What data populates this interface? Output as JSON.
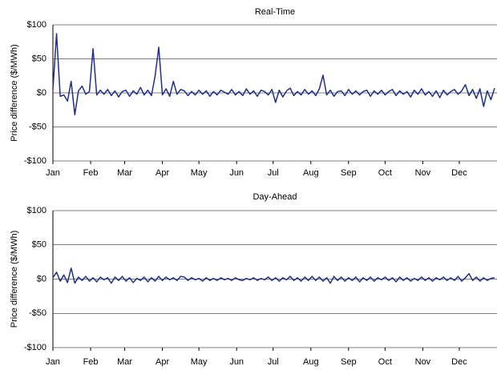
{
  "chart_data": [
    {
      "type": "line",
      "title": "Real-Time",
      "y_label": "Price difference ($/MWh)",
      "color": "#1f2f8a",
      "grid": true,
      "xlim": [
        1,
        366
      ],
      "ylim": [
        -100,
        100
      ],
      "xticks": [
        {
          "value": 1,
          "label": "Jan"
        },
        {
          "value": 32,
          "label": "Feb"
        },
        {
          "value": 60,
          "label": "Mar"
        },
        {
          "value": 91,
          "label": "Apr"
        },
        {
          "value": 121,
          "label": "May"
        },
        {
          "value": 152,
          "label": "Jun"
        },
        {
          "value": 182,
          "label": "Jul"
        },
        {
          "value": 213,
          "label": "Aug"
        },
        {
          "value": 244,
          "label": "Sep"
        },
        {
          "value": 274,
          "label": "Oct"
        },
        {
          "value": 305,
          "label": "Nov"
        },
        {
          "value": 335,
          "label": "Dec"
        }
      ],
      "yticks": [
        {
          "value": -100,
          "label": "-$100"
        },
        {
          "value": -50,
          "label": "-$50"
        },
        {
          "value": 0,
          "label": "$0"
        },
        {
          "value": 50,
          "label": "$50"
        },
        {
          "value": 100,
          "label": "$100"
        }
      ],
      "x": [
        1,
        4,
        7,
        10,
        13,
        16,
        19,
        22,
        25,
        28,
        31,
        34,
        37,
        40,
        43,
        46,
        49,
        52,
        55,
        58,
        61,
        64,
        67,
        70,
        73,
        76,
        79,
        82,
        85,
        88,
        91,
        94,
        97,
        100,
        103,
        106,
        109,
        112,
        115,
        118,
        121,
        124,
        127,
        130,
        133,
        136,
        139,
        142,
        145,
        148,
        151,
        154,
        157,
        160,
        163,
        166,
        169,
        172,
        175,
        178,
        181,
        184,
        187,
        190,
        193,
        196,
        199,
        202,
        205,
        208,
        211,
        214,
        217,
        220,
        223,
        226,
        229,
        232,
        235,
        238,
        241,
        244,
        247,
        250,
        253,
        256,
        259,
        262,
        265,
        268,
        271,
        274,
        277,
        280,
        283,
        286,
        289,
        292,
        295,
        298,
        301,
        304,
        307,
        310,
        313,
        316,
        319,
        322,
        325,
        328,
        331,
        334,
        337,
        340,
        343,
        346,
        349,
        352,
        355,
        358,
        361,
        364
      ],
      "values": [
        5,
        87,
        -5,
        -3,
        -12,
        17,
        -32,
        3,
        10,
        -2,
        2,
        65,
        -3,
        4,
        -2,
        5,
        -4,
        3,
        -6,
        2,
        4,
        -5,
        3,
        -2,
        8,
        -3,
        4,
        -4,
        25,
        67,
        -3,
        6,
        -5,
        17,
        -2,
        5,
        3,
        -4,
        2,
        -3,
        4,
        -2,
        3,
        -5,
        2,
        -3,
        4,
        1,
        -2,
        5,
        -3,
        2,
        -4,
        6,
        -2,
        3,
        -5,
        4,
        2,
        -3,
        5,
        -14,
        4,
        -6,
        3,
        7,
        -4,
        2,
        -3,
        5,
        -2,
        3,
        -4,
        6,
        26,
        -3,
        4,
        -5,
        2,
        3,
        -4,
        5,
        -2,
        3,
        -3,
        2,
        4,
        -5,
        3,
        -2,
        4,
        -3,
        2,
        5,
        -4,
        3,
        -2,
        2,
        -6,
        4,
        -2,
        6,
        -3,
        2,
        -5,
        3,
        -7,
        4,
        -3,
        2,
        5,
        -2,
        3,
        12,
        -4,
        5,
        -8,
        6,
        -20,
        3,
        -10,
        7
      ]
    },
    {
      "type": "line",
      "title": "Day-Ahead",
      "y_label": "Price difference ($/MWh)",
      "color": "#1f2f8a",
      "grid": true,
      "xlim": [
        1,
        366
      ],
      "ylim": [
        -100,
        100
      ],
      "xticks": [
        {
          "value": 1,
          "label": "Jan"
        },
        {
          "value": 32,
          "label": "Feb"
        },
        {
          "value": 60,
          "label": "Mar"
        },
        {
          "value": 91,
          "label": "Apr"
        },
        {
          "value": 121,
          "label": "May"
        },
        {
          "value": 152,
          "label": "Jun"
        },
        {
          "value": 182,
          "label": "Jul"
        },
        {
          "value": 213,
          "label": "Aug"
        },
        {
          "value": 244,
          "label": "Sep"
        },
        {
          "value": 274,
          "label": "Oct"
        },
        {
          "value": 305,
          "label": "Nov"
        },
        {
          "value": 335,
          "label": "Dec"
        }
      ],
      "yticks": [
        {
          "value": -100,
          "label": "-$100"
        },
        {
          "value": -50,
          "label": "-$50"
        },
        {
          "value": 0,
          "label": "$0"
        },
        {
          "value": 50,
          "label": "$50"
        },
        {
          "value": 100,
          "label": "$100"
        }
      ],
      "x": [
        1,
        4,
        7,
        10,
        13,
        16,
        19,
        22,
        25,
        28,
        31,
        34,
        37,
        40,
        43,
        46,
        49,
        52,
        55,
        58,
        61,
        64,
        67,
        70,
        73,
        76,
        79,
        82,
        85,
        88,
        91,
        94,
        97,
        100,
        103,
        106,
        109,
        112,
        115,
        118,
        121,
        124,
        127,
        130,
        133,
        136,
        139,
        142,
        145,
        148,
        151,
        154,
        157,
        160,
        163,
        166,
        169,
        172,
        175,
        178,
        181,
        184,
        187,
        190,
        193,
        196,
        199,
        202,
        205,
        208,
        211,
        214,
        217,
        220,
        223,
        226,
        229,
        232,
        235,
        238,
        241,
        244,
        247,
        250,
        253,
        256,
        259,
        262,
        265,
        268,
        271,
        274,
        277,
        280,
        283,
        286,
        289,
        292,
        295,
        298,
        301,
        304,
        307,
        310,
        313,
        316,
        319,
        322,
        325,
        328,
        331,
        334,
        337,
        340,
        343,
        346,
        349,
        352,
        355,
        358,
        361,
        364
      ],
      "values": [
        2,
        10,
        -3,
        6,
        -5,
        16,
        -6,
        3,
        -2,
        4,
        -3,
        2,
        -4,
        3,
        -1,
        2,
        -6,
        3,
        -2,
        4,
        -3,
        2,
        -5,
        1,
        -2,
        3,
        -4,
        2,
        -3,
        4,
        -2,
        3,
        -1,
        2,
        -2,
        4,
        3,
        -2,
        2,
        -1,
        1,
        -3,
        2,
        -2,
        1,
        -2,
        2,
        -1,
        1,
        -2,
        2,
        -1,
        -2,
        1,
        -1,
        2,
        -2,
        1,
        -1,
        3,
        -2,
        2,
        -3,
        2,
        -1,
        4,
        -2,
        2,
        -3,
        3,
        -2,
        4,
        -2,
        3,
        -3,
        2,
        -6,
        4,
        -2,
        3,
        -3,
        2,
        -2,
        3,
        -4,
        2,
        -2,
        3,
        -3,
        2,
        -1,
        3,
        -2,
        2,
        -4,
        3,
        -2,
        2,
        -3,
        1,
        -2,
        3,
        -2,
        2,
        -3,
        2,
        -1,
        3,
        -2,
        2,
        -2,
        4,
        -3,
        2,
        8,
        -2,
        3,
        -3,
        2,
        -2,
        1,
        2
      ]
    }
  ]
}
